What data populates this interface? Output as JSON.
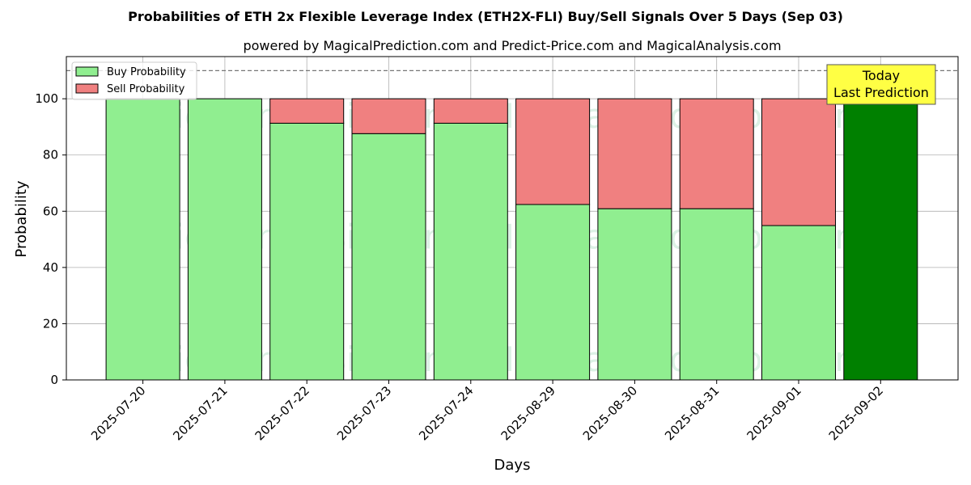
{
  "chart_data": {
    "type": "bar",
    "stacked": true,
    "title": "Probabilities of ETH 2x Flexible Leverage Index (ETH2X-FLI) Buy/Sell Signals Over 5 Days (Sep 03)",
    "subtitle": "powered by MagicalPrediction.com and Predict-Price.com and MagicalAnalysis.com",
    "xlabel": "Days",
    "ylabel": "Probability",
    "ylim": [
      0,
      115
    ],
    "yticks": [
      0,
      20,
      40,
      60,
      80,
      100
    ],
    "grid": true,
    "legend_position": "top-left",
    "reference_line": 110,
    "categories": [
      "2025-07-20",
      "2025-07-21",
      "2025-07-22",
      "2025-07-23",
      "2025-07-24",
      "2025-08-29",
      "2025-08-30",
      "2025-08-31",
      "2025-09-01",
      "2025-09-02"
    ],
    "series": [
      {
        "name": "Buy Probability",
        "color": "#90ee90",
        "values": [
          100,
          100,
          91.3,
          87.6,
          91.3,
          62.4,
          60.9,
          60.9,
          54.9,
          100
        ]
      },
      {
        "name": "Sell Probability",
        "color": "#f08080",
        "values": [
          0,
          0,
          8.7,
          12.4,
          8.7,
          37.6,
          39.1,
          39.1,
          45.1,
          0
        ]
      }
    ],
    "highlight": {
      "index": 9,
      "color": "#008000"
    },
    "annotation": {
      "lines": [
        "Today",
        "Last Prediction"
      ],
      "color": "#ffff44"
    },
    "watermarks": [
      "MagicalAnalysis.com",
      "MagicalPrediction.com"
    ]
  }
}
